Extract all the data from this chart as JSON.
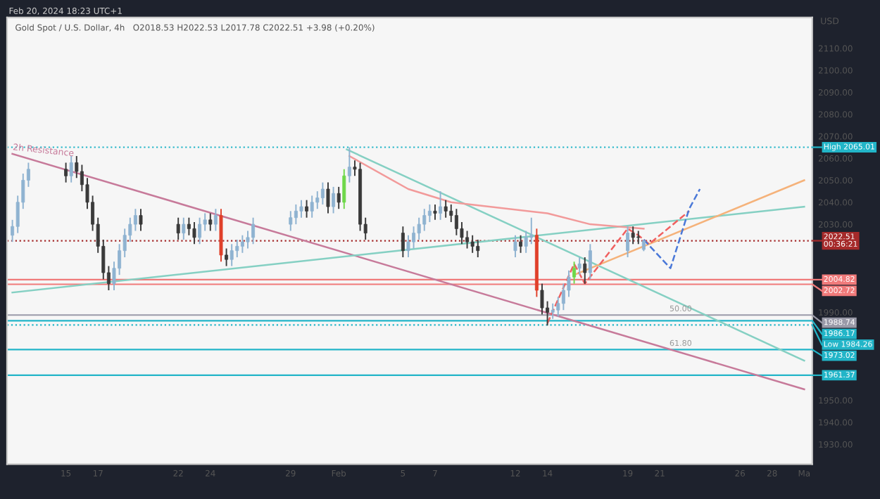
{
  "chart_data": {
    "type": "candlestick",
    "title": "Gold Spot / U.S. Dollar, 4h",
    "subtitle": "O2018.53 H2022.53 L2017.78 C2022.51 +3.98 (+0.20%)",
    "ylabel": "USD",
    "annotations": [
      "Feb 20, 2024 18:23 UTC+1",
      {
        "text": "50.00",
        "x": "2024-02-23T00:00",
        "y": 1988.74
      },
      {
        "text": "61.80",
        "x": "2024-02-23T00:00",
        "y": 1973.02
      }
    ],
    "x": [
      "2024-01-11T16:00",
      "2024-01-12T00:00",
      "2024-01-12T08:00",
      "2024-01-12T16:00",
      "2024-01-15T00:00",
      "2024-01-15T08:00",
      "2024-01-15T16:00",
      "2024-01-16T00:00",
      "2024-01-16T08:00",
      "2024-01-16T16:00",
      "2024-01-17T00:00",
      "2024-01-17T08:00",
      "2024-01-17T16:00",
      "2024-01-18T00:00",
      "2024-01-18T08:00",
      "2024-01-18T16:00",
      "2024-01-19T00:00",
      "2024-01-19T08:00",
      "2024-01-19T16:00",
      "2024-01-22T00:00",
      "2024-01-22T08:00",
      "2024-01-22T16:00",
      "2024-01-23T00:00",
      "2024-01-23T08:00",
      "2024-01-23T16:00",
      "2024-01-24T00:00",
      "2024-01-24T08:00",
      "2024-01-24T16:00",
      "2024-01-25T00:00",
      "2024-01-25T08:00",
      "2024-01-25T16:00",
      "2024-01-26T00:00",
      "2024-01-26T08:00",
      "2024-01-26T16:00",
      "2024-01-29T00:00",
      "2024-01-29T08:00",
      "2024-01-29T16:00",
      "2024-01-30T00:00",
      "2024-01-30T08:00",
      "2024-01-30T16:00",
      "2024-01-31T00:00",
      "2024-01-31T08:00",
      "2024-01-31T16:00",
      "2024-02-01T00:00",
      "2024-02-01T08:00",
      "2024-02-01T16:00",
      "2024-02-02T00:00",
      "2024-02-02T08:00",
      "2024-02-02T16:00",
      "2024-02-05T00:00",
      "2024-02-05T08:00",
      "2024-02-05T16:00",
      "2024-02-06T00:00",
      "2024-02-06T08:00",
      "2024-02-06T16:00",
      "2024-02-07T00:00",
      "2024-02-07T08:00",
      "2024-02-07T16:00",
      "2024-02-08T00:00",
      "2024-02-08T08:00",
      "2024-02-08T16:00",
      "2024-02-09T00:00",
      "2024-02-09T08:00",
      "2024-02-09T16:00",
      "2024-02-12T00:00",
      "2024-02-12T08:00",
      "2024-02-12T16:00",
      "2024-02-13T00:00",
      "2024-02-13T08:00",
      "2024-02-13T16:00",
      "2024-02-14T00:00",
      "2024-02-14T08:00",
      "2024-02-14T16:00",
      "2024-02-15T00:00",
      "2024-02-15T08:00",
      "2024-02-15T16:00",
      "2024-02-16T00:00",
      "2024-02-16T08:00",
      "2024-02-16T16:00",
      "2024-02-19T00:00",
      "2024-02-19T08:00",
      "2024-02-19T16:00",
      "2024-02-20T00:00"
    ],
    "ohlc": [
      [
        2025,
        2032,
        2022,
        2029
      ],
      [
        2029,
        2043,
        2026,
        2040
      ],
      [
        2040,
        2053,
        2037,
        2050
      ],
      [
        2050,
        2058,
        2047,
        2055
      ],
      [
        2055,
        2058,
        2049,
        2052
      ],
      [
        2052,
        2061,
        2049,
        2058
      ],
      [
        2058,
        2061,
        2051,
        2054
      ],
      [
        2054,
        2057,
        2045,
        2048
      ],
      [
        2048,
        2051,
        2037,
        2040
      ],
      [
        2040,
        2043,
        2027,
        2030
      ],
      [
        2030,
        2033,
        2017,
        2020
      ],
      [
        2020,
        2023,
        2005,
        2008
      ],
      [
        2008,
        2011,
        2000,
        2003
      ],
      [
        2003,
        2013,
        2000,
        2010
      ],
      [
        2010,
        2021,
        2007,
        2018
      ],
      [
        2018,
        2028,
        2015,
        2025
      ],
      [
        2025,
        2033,
        2022,
        2030
      ],
      [
        2030,
        2037,
        2027,
        2034
      ],
      [
        2034,
        2037,
        2027,
        2030
      ],
      [
        2030,
        2033,
        2023,
        2026
      ],
      [
        2026,
        2033,
        2023,
        2030
      ],
      [
        2030,
        2033,
        2025,
        2028
      ],
      [
        2028,
        2031,
        2021,
        2024
      ],
      [
        2024,
        2033,
        2021,
        2030
      ],
      [
        2030,
        2035,
        2027,
        2032
      ],
      [
        2032,
        2035,
        2027,
        2030
      ],
      [
        2030,
        2037,
        2027,
        2034
      ],
      [
        2034,
        2037,
        2013,
        2016
      ],
      [
        2016,
        2019,
        2011,
        2014
      ],
      [
        2014,
        2021,
        2011,
        2018
      ],
      [
        2018,
        2023,
        2015,
        2020
      ],
      [
        2020,
        2025,
        2017,
        2022
      ],
      [
        2022,
        2027,
        2019,
        2024
      ],
      [
        2024,
        2033,
        2021,
        2030
      ],
      [
        2030,
        2036,
        2027,
        2033
      ],
      [
        2033,
        2039,
        2030,
        2036
      ],
      [
        2036,
        2041,
        2033,
        2038
      ],
      [
        2038,
        2041,
        2033,
        2036
      ],
      [
        2036,
        2043,
        2033,
        2040
      ],
      [
        2040,
        2045,
        2037,
        2042
      ],
      [
        2042,
        2049,
        2039,
        2046
      ],
      [
        2046,
        2049,
        2035,
        2038
      ],
      [
        2038,
        2047,
        2035,
        2044
      ],
      [
        2044,
        2047,
        2037,
        2040
      ],
      [
        2040,
        2055,
        2037,
        2052
      ],
      [
        2052,
        2065,
        2049,
        2056
      ],
      [
        2056,
        2059,
        2052,
        2055
      ],
      [
        2055,
        2058,
        2027,
        2030
      ],
      [
        2030,
        2033,
        2023,
        2026
      ],
      [
        2026,
        2029,
        2015,
        2018
      ],
      [
        2018,
        2025,
        2015,
        2022
      ],
      [
        2022,
        2029,
        2019,
        2026
      ],
      [
        2026,
        2033,
        2023,
        2030
      ],
      [
        2030,
        2037,
        2027,
        2034
      ],
      [
        2034,
        2039,
        2031,
        2036
      ],
      [
        2036,
        2039,
        2032,
        2035
      ],
      [
        2035,
        2045,
        2032,
        2038
      ],
      [
        2038,
        2041,
        2033,
        2036
      ],
      [
        2036,
        2039,
        2031,
        2034
      ],
      [
        2034,
        2037,
        2025,
        2028
      ],
      [
        2028,
        2031,
        2021,
        2024
      ],
      [
        2024,
        2027,
        2019,
        2022
      ],
      [
        2022,
        2025,
        2017,
        2020
      ],
      [
        2020,
        2023,
        2015,
        2018
      ],
      [
        2018,
        2025,
        2015,
        2022
      ],
      [
        2022,
        2025,
        2017,
        2020
      ],
      [
        2020,
        2027,
        2017,
        2024
      ],
      [
        2024,
        2033,
        2021,
        2025
      ],
      [
        2025,
        2028,
        1997,
        2000
      ],
      [
        2000,
        2003,
        1989,
        1992
      ],
      [
        1992,
        1995,
        1984,
        1990
      ],
      [
        1990,
        1994,
        1987,
        1991
      ],
      [
        1991,
        1997,
        1988,
        1994
      ],
      [
        1994,
        2003,
        1991,
        2000
      ],
      [
        2000,
        2009,
        1997,
        2006
      ],
      [
        2006,
        2013,
        2003,
        2010
      ],
      [
        2010,
        2015,
        2007,
        2012
      ],
      [
        2012,
        2015,
        2003,
        2008
      ],
      [
        2008,
        2021,
        2005,
        2018
      ],
      [
        2018,
        2029,
        2015,
        2026
      ],
      [
        2026,
        2029,
        2021,
        2024
      ],
      [
        2024,
        2027,
        2021,
        2024
      ],
      [
        2018.53,
        2022.53,
        2017.78,
        2022.51
      ]
    ],
    "colors": [
      "#8fb3d1",
      "#8fb3d1",
      "#8fb3d1",
      "#8fb3d1",
      "#3a3a3a",
      "#8fb3d1",
      "#3a3a3a",
      "#3a3a3a",
      "#3a3a3a",
      "#3a3a3a",
      "#3a3a3a",
      "#3a3a3a",
      "#3a3a3a",
      "#8fb3d1",
      "#8fb3d1",
      "#8fb3d1",
      "#8fb3d1",
      "#8fb3d1",
      "#3a3a3a",
      "#3a3a3a",
      "#8fb3d1",
      "#3a3a3a",
      "#3a3a3a",
      "#8fb3d1",
      "#8fb3d1",
      "#3a3a3a",
      "#8fb3d1",
      "#e0402a",
      "#3a3a3a",
      "#8fb3d1",
      "#8fb3d1",
      "#8fb3d1",
      "#8fb3d1",
      "#8fb3d1",
      "#8fb3d1",
      "#8fb3d1",
      "#8fb3d1",
      "#3a3a3a",
      "#8fb3d1",
      "#8fb3d1",
      "#8fb3d1",
      "#3a3a3a",
      "#8fb3d1",
      "#3a3a3a",
      "#6fd84a",
      "#8fb3d1",
      "#3a3a3a",
      "#3a3a3a",
      "#3a3a3a",
      "#3a3a3a",
      "#8fb3d1",
      "#8fb3d1",
      "#8fb3d1",
      "#8fb3d1",
      "#8fb3d1",
      "#3a3a3a",
      "#8fb3d1",
      "#3a3a3a",
      "#3a3a3a",
      "#3a3a3a",
      "#3a3a3a",
      "#3a3a3a",
      "#3a3a3a",
      "#3a3a3a",
      "#8fb3d1",
      "#3a3a3a",
      "#8fb3d1",
      "#8fb3d1",
      "#e0402a",
      "#3a3a3a",
      "#3a3a3a",
      "#8fb3d1",
      "#8fb3d1",
      "#8fb3d1",
      "#8fb3d1",
      "#6fd84a",
      "#8fb3d1",
      "#3a3a3a",
      "#8fb3d1",
      "#8fb3d1",
      "#3a3a3a",
      "#3a3a3a",
      "#8fb3d1"
    ],
    "series": [
      {
        "type": "line",
        "name": "2h Resistance",
        "color": "#c77a9a",
        "line_style": "solid",
        "x": [
          "2024-01-11T16:00",
          "2024-03-01T00:00"
        ],
        "values": [
          2062,
          1955
        ]
      },
      {
        "type": "line",
        "color": "#85d0c3",
        "line_style": "solid",
        "x": [
          "2024-02-01T12:00",
          "2024-03-01T00:00"
        ],
        "values": [
          2064,
          1968
        ]
      },
      {
        "type": "line",
        "color": "#85d0c3",
        "line_style": "solid",
        "x": [
          "2024-01-11T16:00",
          "2024-03-01T00:00"
        ],
        "values": [
          1999,
          2038
        ]
      },
      {
        "type": "line",
        "color": "#f5b27a",
        "line_style": "solid",
        "x": [
          "2024-02-15T16:00",
          "2024-03-01T00:00"
        ],
        "values": [
          2007,
          2050
        ]
      },
      {
        "type": "line",
        "color": "#f29a9a",
        "line_style": "solid",
        "x": [
          "2024-02-01T16:00",
          "2024-02-05T08:00",
          "2024-02-08T00:00",
          "2024-02-14T00:00",
          "2024-02-16T16:00",
          "2024-02-20T00:00"
        ],
        "values": [
          2061,
          2046,
          2040,
          2035,
          2030,
          2028
        ]
      },
      {
        "type": "line",
        "color": "#f06060",
        "line_style": "dashed",
        "x": [
          "2024-02-14T00:00",
          "2024-02-15T16:00",
          "2024-02-16T08:00",
          "2024-02-19T00:00",
          "2024-02-19T16:00",
          "2024-02-20T08:00",
          "2024-02-22T20:00"
        ],
        "values": [
          1985,
          2012,
          2003,
          2028,
          2025,
          2021,
          2036
        ]
      },
      {
        "type": "line",
        "color": "#4a78d8",
        "line_style": "dashed",
        "x": [
          "2024-02-20T00:00",
          "2024-02-21T16:00",
          "2024-02-22T20:00",
          "2024-02-23T12:00"
        ],
        "values": [
          2023,
          2010,
          2037,
          2046
        ]
      }
    ],
    "ref_lines": [
      {
        "axis": "y",
        "value": 2065.01,
        "label": "High 2065.01",
        "color": "#22b5c8",
        "line_style": "dotted"
      },
      {
        "axis": "y",
        "value": 2022.51,
        "label": "2022.51\n00:36:21",
        "color": "#a52a2a",
        "line_style": "dotted"
      },
      {
        "axis": "y",
        "value": 2004.82,
        "label": "2004.82",
        "color": "#f07a7a",
        "line_style": "solid"
      },
      {
        "axis": "y",
        "value": 2002.72,
        "label": "2002.72",
        "color": "#f07a7a",
        "line_style": "solid"
      },
      {
        "axis": "y",
        "value": 1988.74,
        "label": "1988.74",
        "color": "#9a9aa8",
        "line_style": "solid"
      },
      {
        "axis": "y",
        "value": 1986.17,
        "label": "1986.17",
        "color": "#22b5c8",
        "line_style": "solid"
      },
      {
        "axis": "y",
        "value": 1984.26,
        "label": "Low 1984.26",
        "color": "#22b5c8",
        "line_style": "dotted"
      },
      {
        "axis": "y",
        "value": 1973.02,
        "label": "1973.02",
        "color": "#22b5c8",
        "line_style": "solid"
      },
      {
        "axis": "y",
        "value": 1961.37,
        "label": "1961.37",
        "color": "#22b5c8",
        "line_style": "solid"
      }
    ],
    "xlim": [
      "2024-01-11T08:00",
      "2024-03-01T12:00"
    ],
    "xticks": [
      {
        "value": "2024-01-15",
        "label": "15"
      },
      {
        "value": "2024-01-17",
        "label": "17"
      },
      {
        "value": "2024-01-22",
        "label": "22"
      },
      {
        "value": "2024-01-24",
        "label": "24"
      },
      {
        "value": "2024-01-29",
        "label": "29"
      },
      {
        "value": "2024-02-01",
        "label": "Feb"
      },
      {
        "value": "2024-02-05",
        "label": "5"
      },
      {
        "value": "2024-02-07",
        "label": "7"
      },
      {
        "value": "2024-02-12",
        "label": "12"
      },
      {
        "value": "2024-02-14",
        "label": "14"
      },
      {
        "value": "2024-02-19",
        "label": "19"
      },
      {
        "value": "2024-02-21",
        "label": "21"
      },
      {
        "value": "2024-02-26",
        "label": "26"
      },
      {
        "value": "2024-02-28",
        "label": "28"
      },
      {
        "value": "2024-03-01",
        "label": "Ma"
      }
    ],
    "ylim": [
      1921,
      2124
    ],
    "yticks": [
      {
        "value": 1930,
        "label": "1930.00"
      },
      {
        "value": 1940,
        "label": "1940.00"
      },
      {
        "value": 1950,
        "label": "1950.00"
      },
      {
        "value": 1990,
        "label": "1990.00"
      },
      {
        "value": 2030,
        "label": "2030.00"
      },
      {
        "value": 2040,
        "label": "2040.00"
      },
      {
        "value": 2050,
        "label": "2050.00"
      },
      {
        "value": 2060,
        "label": "2060.00"
      },
      {
        "value": 2070,
        "label": "2070.00"
      },
      {
        "value": 2080,
        "label": "2080.00"
      },
      {
        "value": 2090,
        "label": "2090.00"
      },
      {
        "value": 2100,
        "label": "2100.00"
      },
      {
        "value": 2110,
        "label": "2110.00"
      }
    ],
    "grid": false
  }
}
